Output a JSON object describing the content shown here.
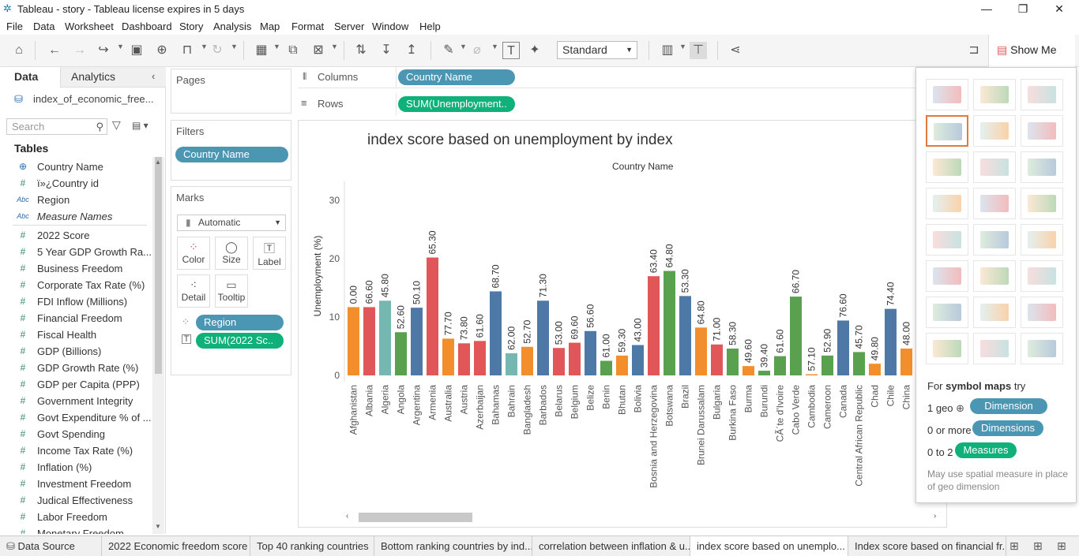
{
  "window": {
    "title": "Tableau - story - Tableau license expires in 5 days",
    "min_icon": "minimize-icon",
    "max_icon": "restore-icon",
    "close_icon": "close-icon"
  },
  "menu": [
    "File",
    "Data",
    "Worksheet",
    "Dashboard",
    "Story",
    "Analysis",
    "Map",
    "Format",
    "Server",
    "Window",
    "Help"
  ],
  "toolbar": {
    "fit_mode": "Standard",
    "show_me_label": "Show Me"
  },
  "data_pane": {
    "tab_data": "Data",
    "tab_analytics": "Analytics",
    "datasource": "index_of_economic_free...",
    "search_placeholder": "Search",
    "tables_header": "Tables",
    "fields": [
      {
        "type": "geo",
        "label": "Country Name"
      },
      {
        "type": "num",
        "label": "ï»¿Country id"
      },
      {
        "type": "abc",
        "label": "Region"
      },
      {
        "type": "abc",
        "label": "Measure Names"
      },
      {
        "type": "num",
        "label": "2022 Score"
      },
      {
        "type": "num",
        "label": "5 Year GDP Growth Ra..."
      },
      {
        "type": "num",
        "label": "Business Freedom"
      },
      {
        "type": "num",
        "label": "Corporate Tax Rate (%)"
      },
      {
        "type": "num",
        "label": "FDI Inflow (Millions)"
      },
      {
        "type": "num",
        "label": "Financial Freedom"
      },
      {
        "type": "num",
        "label": "Fiscal Health"
      },
      {
        "type": "num",
        "label": "GDP (Billions)"
      },
      {
        "type": "num",
        "label": "GDP Growth Rate (%)"
      },
      {
        "type": "num",
        "label": "GDP per Capita (PPP)"
      },
      {
        "type": "num",
        "label": "Government Integrity"
      },
      {
        "type": "num",
        "label": "Govt Expenditure % of ..."
      },
      {
        "type": "num",
        "label": "Govt Spending"
      },
      {
        "type": "num",
        "label": "Income Tax Rate (%)"
      },
      {
        "type": "num",
        "label": "Inflation (%)"
      },
      {
        "type": "num",
        "label": "Investment Freedom"
      },
      {
        "type": "num",
        "label": "Judical Effectiveness"
      },
      {
        "type": "num",
        "label": "Labor Freedom"
      },
      {
        "type": "num",
        "label": "Monetary Freedom"
      }
    ]
  },
  "shelves": {
    "pages": "Pages",
    "filters": "Filters",
    "filter_pill": "Country Name",
    "marks": "Marks",
    "mark_type": "Automatic",
    "mark_buttons": [
      "Color",
      "Size",
      "Label",
      "Detail",
      "Tooltip"
    ],
    "mark_pills": [
      {
        "label": "Region",
        "color": "#4b96b3"
      },
      {
        "label": "SUM(2022 Sc..",
        "color": "#0fb07a"
      }
    ],
    "columns_label": "Columns",
    "columns_pill": "Country Name",
    "rows_label": "Rows",
    "rows_pill": "SUM(Unemployment.."
  },
  "show_me": {
    "hint_title_prefix": "For ",
    "hint_title_bold": "symbol maps",
    "hint_title_suffix": " try",
    "rows": [
      {
        "pre": "1 geo",
        "pill": "Dimension"
      },
      {
        "pre": "0 or more",
        "pill": "Dimensions"
      },
      {
        "pre": "0 to 2",
        "pill": "Measures"
      }
    ],
    "note": "May use spatial measure in place of geo dimension"
  },
  "chart_data": {
    "type": "bar",
    "title": "index score based on unemployment by index",
    "xlabel": "Country Name",
    "ylabel": "Unemployment (%)",
    "ylim": [
      0,
      33
    ],
    "yticks": [
      0,
      10,
      20,
      30
    ],
    "categories": [
      "Afghanistan",
      "Albania",
      "Algeria",
      "Angola",
      "Argentina",
      "Armenia",
      "Australia",
      "Austria",
      "Azerbaijan",
      "Bahamas",
      "Bahrain",
      "Bangladesh",
      "Barbados",
      "Belarus",
      "Belgium",
      "Belize",
      "Benin",
      "Bhutan",
      "Bolivia",
      "Bosnia and Herzegovina",
      "Botswana",
      "Brazil",
      "Brunei Darussalam",
      "Bulgaria",
      "Burkina Faso",
      "Burma",
      "Burundi",
      "CÃ´te d'Ivoire",
      "Cabo Verde",
      "Cambodia",
      "Cameroon",
      "Canada",
      "Central African Republic",
      "Chad",
      "Chile",
      "China"
    ],
    "values": [
      11.7,
      11.7,
      12.8,
      7.4,
      11.6,
      20.2,
      6.3,
      5.5,
      5.9,
      14.4,
      3.8,
      4.9,
      12.8,
      4.7,
      5.6,
      7.6,
      2.5,
      3.4,
      5.2,
      17.0,
      17.9,
      13.6,
      8.2,
      5.3,
      4.6,
      1.6,
      0.8,
      3.3,
      13.5,
      0.2,
      3.4,
      9.4,
      4.0,
      2.0,
      11.4,
      4.6
    ],
    "labels": [
      "0.00",
      "66.60",
      "45.80",
      "52.60",
      "50.10",
      "65.30",
      "77.70",
      "73.80",
      "61.60",
      "68.70",
      "62.00",
      "52.70",
      "71.30",
      "53.00",
      "69.60",
      "56.60",
      "61.00",
      "59.30",
      "43.00",
      "63.40",
      "64.80",
      "53.30",
      "64.80",
      "71.00",
      "58.30",
      "49.60",
      "39.40",
      "61.60",
      "66.70",
      "57.10",
      "52.90",
      "76.60",
      "45.70",
      "49.80",
      "74.40",
      "48.00"
    ],
    "regions": [
      "orange",
      "red",
      "teal",
      "green",
      "blue",
      "red",
      "orange",
      "red",
      "red",
      "blue",
      "teal",
      "orange",
      "blue",
      "red",
      "red",
      "blue",
      "green",
      "orange",
      "blue",
      "red",
      "green",
      "blue",
      "orange",
      "red",
      "green",
      "orange",
      "green",
      "green",
      "green",
      "orange",
      "green",
      "blue",
      "green",
      "orange",
      "blue",
      "orange"
    ],
    "region_colors": {
      "orange": "#f28e2b",
      "red": "#e15759",
      "teal": "#76b7b2",
      "green": "#59a14f",
      "blue": "#4e79a7"
    }
  },
  "bottom_tabs": [
    {
      "label": "Data Source",
      "active": false
    },
    {
      "label": "2022 Economic freedom score",
      "active": false
    },
    {
      "label": "Top 40 ranking countries",
      "active": false
    },
    {
      "label": "Bottom ranking countries by ind...",
      "active": false
    },
    {
      "label": "correlation between inflation & u...",
      "active": false
    },
    {
      "label": "index score based on unemplo...",
      "active": true
    },
    {
      "label": "Index score based on financial fr...",
      "active": false
    }
  ]
}
